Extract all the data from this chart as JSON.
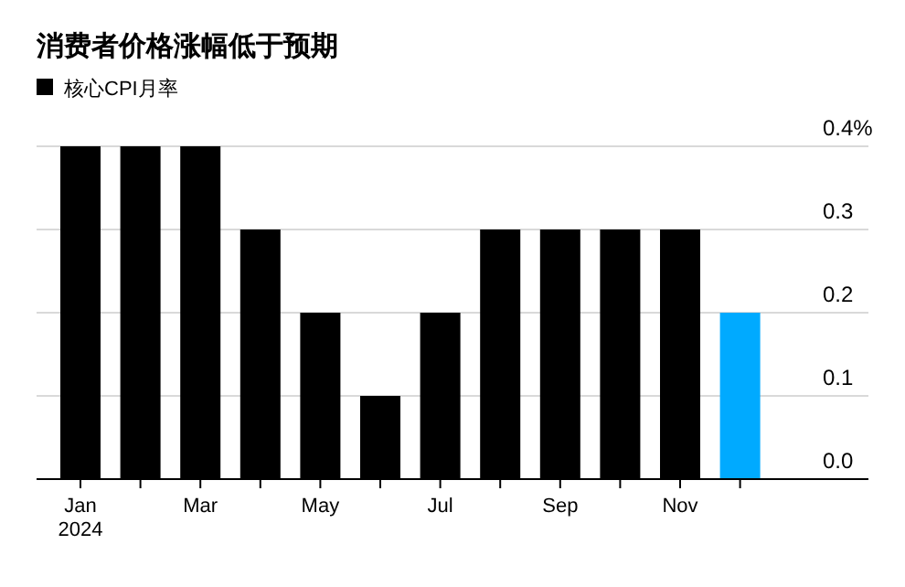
{
  "chart_data": {
    "type": "bar",
    "title": "消费者价格涨幅低于预期",
    "categories": [
      "Jan\n2024",
      null,
      "Mar",
      null,
      "May",
      null,
      "Jul",
      null,
      "Sep",
      null,
      "Nov",
      null
    ],
    "series": [
      {
        "name": "核心CPI月率",
        "color": "#000000",
        "colors": [
          "#000000",
          "#000000",
          "#000000",
          "#000000",
          "#000000",
          "#000000",
          "#000000",
          "#000000",
          "#000000",
          "#000000",
          "#000000",
          "#00aaff"
        ],
        "values": [
          0.4,
          0.4,
          0.4,
          0.3,
          0.2,
          0.1,
          0.2,
          0.3,
          0.3,
          0.3,
          0.3,
          0.2
        ]
      }
    ],
    "ylim": [
      0,
      0.4
    ],
    "yticks": [
      {
        "value": 0,
        "label": "0.0"
      },
      0.1,
      0.2,
      0.3,
      {
        "value": 0.4,
        "label": "0.4%"
      }
    ],
    "grid": "y",
    "legend": "top left"
  }
}
